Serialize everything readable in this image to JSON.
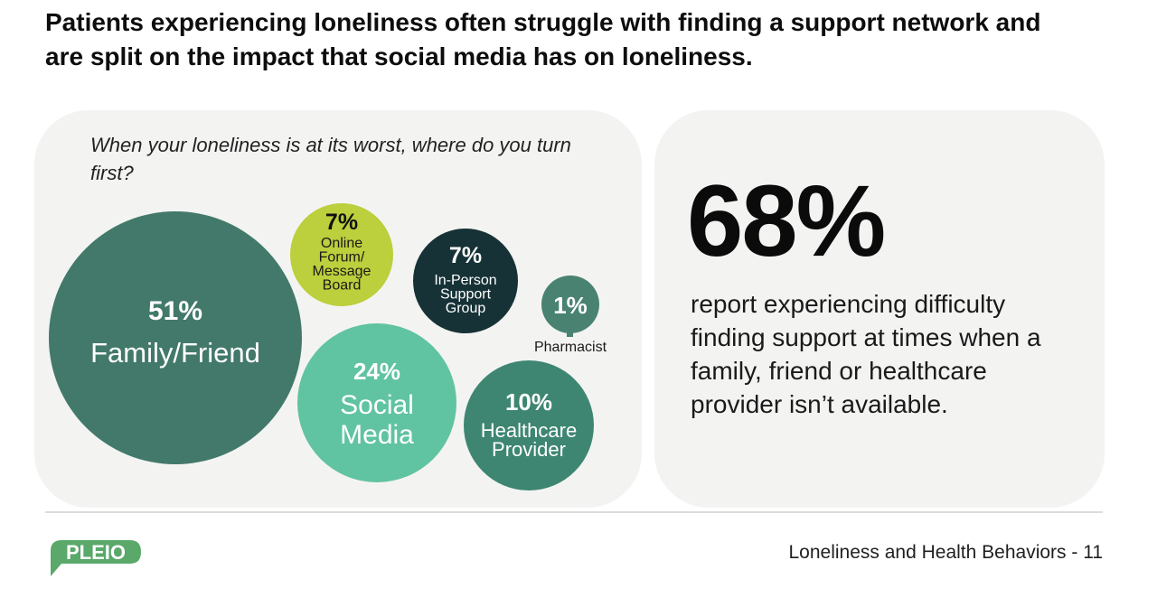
{
  "headline": "Patients experiencing loneliness often struggle with finding a support network and are split on the impact that social media has on loneliness.",
  "chart_data": {
    "type": "bubble",
    "title": "When your loneliness is at its worst, where do you turn first?",
    "unit": "%",
    "items": [
      {
        "label": "Family/Friend",
        "value": 51,
        "value_label": "51%",
        "color": "#42796a",
        "label_lines": [
          "Family/Friend"
        ]
      },
      {
        "label": "Online Forum/ Message Board",
        "value": 7,
        "value_label": "7%",
        "color": "#bccf3c",
        "label_lines": [
          "Online",
          "Forum/",
          "Message",
          "Board"
        ]
      },
      {
        "label": "In-Person Support Group",
        "value": 7,
        "value_label": "7%",
        "color": "#163236",
        "label_lines": [
          "In-Person",
          "Support",
          "Group"
        ]
      },
      {
        "label": "Pharmacist",
        "value": 1,
        "value_label": "1%",
        "color": "#4a8272",
        "label_lines": [
          "Pharmacist"
        ]
      },
      {
        "label": "Social Media",
        "value": 24,
        "value_label": "24%",
        "color": "#60c3a1",
        "label_lines": [
          "Social",
          "Media"
        ]
      },
      {
        "label": "Healthcare Provider",
        "value": 10,
        "value_label": "10%",
        "color": "#3e8672",
        "label_lines": [
          "Healthcare",
          "Provider"
        ]
      }
    ]
  },
  "stat": {
    "value": "68%",
    "description": "report experiencing difficulty finding support at times when a family, friend or healthcare provider isn’t available."
  },
  "footer": {
    "logo_text": "PLEIO",
    "logo_color": "#5aa86a",
    "caption": "Loneliness and Health Behaviors - 11"
  }
}
